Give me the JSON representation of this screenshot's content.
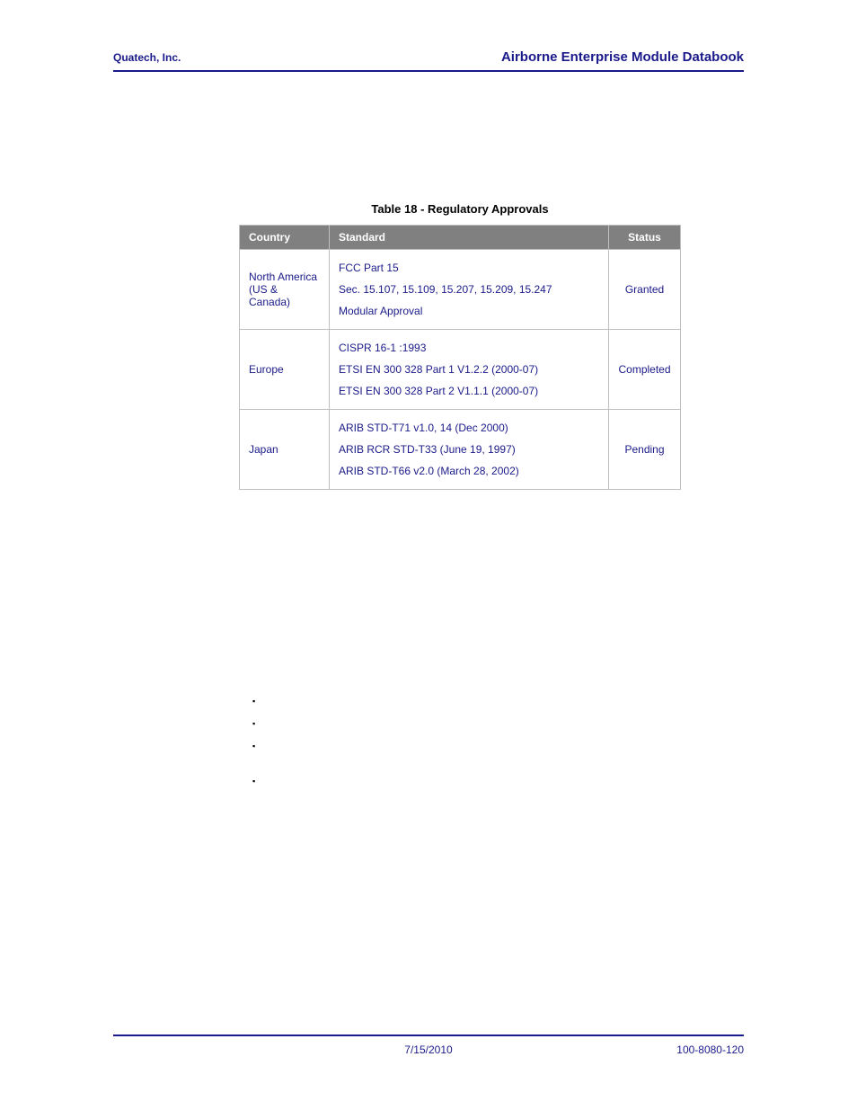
{
  "header": {
    "left": "Quatech, Inc.",
    "right": "Airborne Enterprise Module Databook"
  },
  "colors": {
    "accent": "#1a1a8a",
    "th_bg": "#808080",
    "th_fg": "#ffffff",
    "border": "#bfbfbf",
    "body_text": "#1a1a8a",
    "page_bg": "#ffffff"
  },
  "table": {
    "title": "Table 18 - Regulatory Approvals",
    "columns": {
      "country": "Country",
      "standard": "Standard",
      "status": "Status"
    },
    "rows": [
      {
        "country": "North America (US & Canada)",
        "standard_lines": [
          "FCC Part 15",
          "Sec. 15.107, 15.109, 15.207, 15.209, 15.247",
          "Modular Approval"
        ],
        "status": "Granted"
      },
      {
        "country": "Europe",
        "standard_lines": [
          "CISPR 16-1 :1993",
          "ETSI EN 300 328 Part 1 V1.2.2 (2000-07)",
          "ETSI EN 300 328 Part 2 V1.1.1 (2000-07)"
        ],
        "status": "Completed"
      },
      {
        "country": "Japan",
        "standard_lines": [
          "ARIB STD-T71 v1.0, 14 (Dec 2000)",
          "ARIB RCR STD-T33 (June 19, 1997)",
          "ARIB STD-T66 v2.0 (March 28, 2002)"
        ],
        "status": "Pending"
      }
    ]
  },
  "footer": {
    "left": "",
    "center": "7/15/2010",
    "right": "100-8080-120"
  }
}
